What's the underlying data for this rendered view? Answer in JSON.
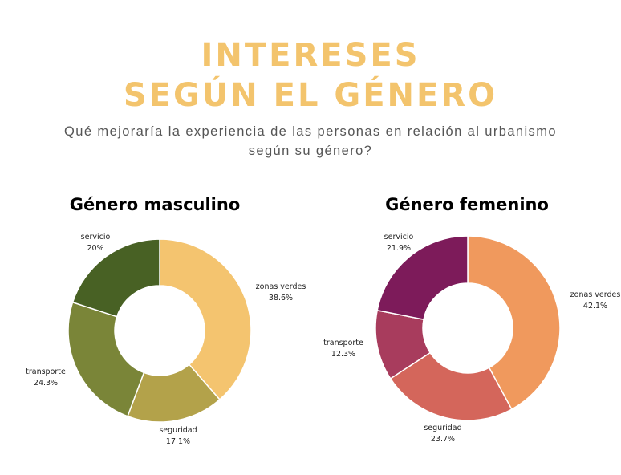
{
  "header": {
    "title_line1": "INTERESES",
    "title_line2": "SEGÚN EL GÉNERO",
    "subtitle_line1": "Qué mejoraría la experiencia de las personas en relación al urbanismo",
    "subtitle_line2": "según su género?"
  },
  "chart_data": [
    {
      "type": "pie",
      "title": "Género masculino",
      "categories": [
        "zonas verdes",
        "seguridad",
        "transporte",
        "servicio"
      ],
      "values": [
        38.6,
        17.1,
        24.3,
        20
      ],
      "value_labels": [
        "38.6%",
        "17.1%",
        "24.3%",
        "20%"
      ],
      "colors": [
        "#f4c46f",
        "#b3a24a",
        "#7a8538",
        "#486124"
      ],
      "donut": true,
      "legend": "none"
    },
    {
      "type": "pie",
      "title": "Género femenino",
      "categories": [
        "zonas verdes",
        "seguridad",
        "transporte",
        "servicio"
      ],
      "values": [
        42.1,
        23.7,
        12.3,
        21.9
      ],
      "value_labels": [
        "42.1%",
        "23.7%",
        "12.3%",
        "21.9%"
      ],
      "colors": [
        "#f0995d",
        "#d4665b",
        "#a83c5d",
        "#7d1b5a"
      ],
      "donut": true,
      "legend": "none"
    }
  ]
}
